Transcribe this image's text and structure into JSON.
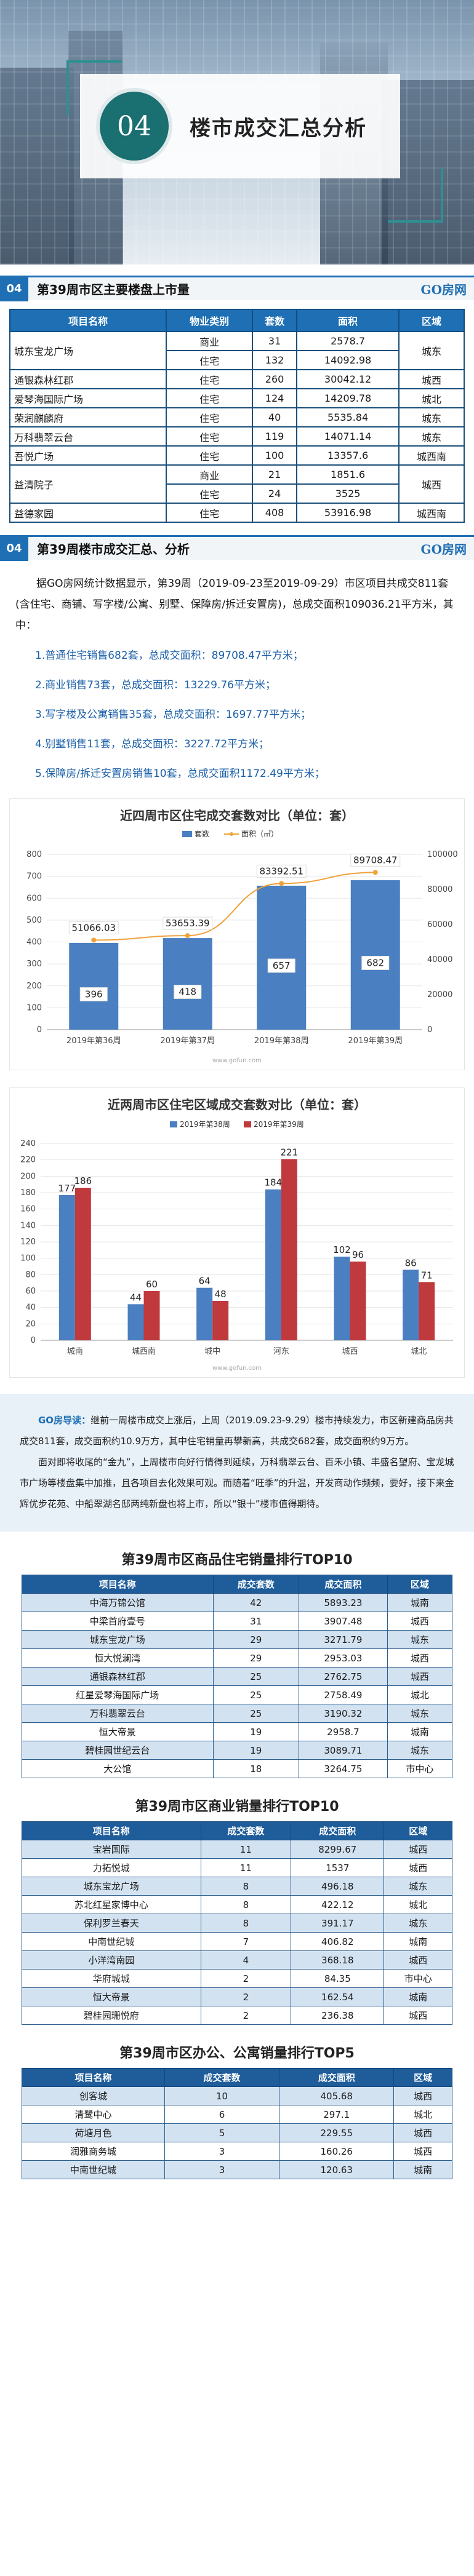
{
  "hero": {
    "badge": "04",
    "title": "楼市成交汇总分析"
  },
  "section1": {
    "num": "04",
    "title": "第39周市区主要楼盘上市量",
    "brand": "GO房网"
  },
  "supply_table": {
    "headers": [
      "项目名称",
      "物业类别",
      "套数",
      "面积",
      "区域"
    ],
    "rows": [
      {
        "name": "城东宝龙广场",
        "type": "商业",
        "units": "31",
        "area": "2578.7",
        "region": "城东",
        "span": 2,
        "rspan": 2
      },
      {
        "name": "",
        "type": "住宅",
        "units": "132",
        "area": "14092.98",
        "region": "",
        "cont": true
      },
      {
        "name": "通银森林红郡",
        "type": "住宅",
        "units": "260",
        "area": "30042.12",
        "region": "城西",
        "span": 1,
        "rspan": 1
      },
      {
        "name": "爱琴海国际广场",
        "type": "住宅",
        "units": "124",
        "area": "14209.78",
        "region": "城北",
        "span": 1,
        "rspan": 1
      },
      {
        "name": "荣润麒麟府",
        "type": "住宅",
        "units": "40",
        "area": "5535.84",
        "region": "城东",
        "span": 1,
        "rspan": 1
      },
      {
        "name": "万科翡翠云台",
        "type": "住宅",
        "units": "119",
        "area": "14071.14",
        "region": "城东",
        "span": 1,
        "rspan": 1
      },
      {
        "name": "吾悦广场",
        "type": "住宅",
        "units": "100",
        "area": "13357.6",
        "region": "城西南",
        "span": 1,
        "rspan": 1
      },
      {
        "name": "益清院子",
        "type": "商业",
        "units": "21",
        "area": "1851.6",
        "region": "城西",
        "span": 2,
        "rspan": 2
      },
      {
        "name": "",
        "type": "住宅",
        "units": "24",
        "area": "3525",
        "region": "",
        "cont": true
      },
      {
        "name": "益德家园",
        "type": "住宅",
        "units": "408",
        "area": "53916.98",
        "region": "城西南",
        "span": 1,
        "rspan": 1
      }
    ]
  },
  "section2": {
    "num": "04",
    "title": "第39周楼市成交汇总、分析",
    "brand": "GO房网"
  },
  "summary": "据GO房网统计数据显示，第39周（2019-09-23至2019-09-29）市区项目共成交811套(含住宅、商铺、写字楼/公寓、别墅、保障房/拆迁安置房)，总成交面积109036.21平方米，其中：",
  "items": [
    "1.普通住宅销售682套，总成交面积：89708.47平方米；",
    "2.商业销售73套，总成交面积：13229.76平方米；",
    "3.写字楼及公寓销售35套，总成交面积：1697.77平方米；",
    "4.别墅销售11套，总成交面积：3227.72平方米；",
    "5.保障房/拆迁安置房销售10套，总成交面积1172.49平方米；"
  ],
  "chart_data": [
    {
      "type": "bar",
      "title": "近四周市区住宅成交套数对比（单位：套）",
      "categories": [
        "2019年第36周",
        "2019年第37周",
        "2019年第38周",
        "2019年第39周"
      ],
      "series": [
        {
          "name": "套数",
          "values": [
            396,
            418,
            657,
            682
          ],
          "color": "#4a7fc1"
        },
        {
          "name": "面积（㎡）",
          "values": [
            51066.03,
            53653.39,
            83392.51,
            89708.47
          ],
          "color": "#f0a23b",
          "type": "line"
        }
      ],
      "ylim_left": [
        0,
        800
      ],
      "yticks_left": [
        "0",
        "100",
        "200",
        "300",
        "400",
        "500",
        "600",
        "700",
        "800"
      ],
      "ylim_right": [
        0,
        100000
      ],
      "yticks_right": [
        "0",
        "20000",
        "40000",
        "60000",
        "80000",
        "100000"
      ],
      "labels_bar": [
        "396",
        "418",
        "657",
        "682"
      ],
      "labels_line": [
        "51066.03",
        "53653.39",
        "83392.51",
        "89708.47"
      ],
      "watermark": "www.gofun.com"
    },
    {
      "type": "bar",
      "title": "近两周市区住宅区域成交套数对比（单位：套）",
      "categories": [
        "城南",
        "城西南",
        "城中",
        "河东",
        "城西",
        "城北"
      ],
      "series": [
        {
          "name": "2019年第38周",
          "values": [
            177,
            44,
            64,
            184,
            102,
            86
          ],
          "color": "#4a7fc1"
        },
        {
          "name": "2019年第39周",
          "values": [
            186,
            60,
            48,
            221,
            96,
            71
          ],
          "color": "#c0393c"
        }
      ],
      "ylim": [
        0,
        240
      ],
      "yticks": [
        "0",
        "20",
        "40",
        "60",
        "80",
        "100",
        "120",
        "140",
        "160",
        "180",
        "200",
        "220",
        "240"
      ],
      "watermark": "www.gofun.com"
    }
  ],
  "gonews": {
    "lead": "GO房导读：",
    "p1": "继前一周楼市成交上涨后，上周（2019.09.23-9.29）楼市持续发力，市区新建商品房共成交811套，成交面积约10.9万方，其中住宅销量再攀新高，共成交682套，成交面积约9万方。",
    "p2": "面对即将收尾的“金九”，上周楼市向好行情得到延续，万科翡翠云台、百禾小镇、丰盛名望府、宝龙城市广场等楼盘集中加推，且各项目去化效果可观。而随着“旺季”的升温，开发商动作频频，要好，接下来金辉优步花苑、中船翠湖名邸两纯新盘也将上市，所以“银十”楼市值得期待。"
  },
  "rank1": {
    "title": "第39周市区商品住宅销量排行TOP10",
    "headers": [
      "项目名称",
      "成交套数",
      "成交面积",
      "区域"
    ],
    "rows": [
      [
        "中海万锦公馆",
        "42",
        "5893.23",
        "城南"
      ],
      [
        "中梁首府壹号",
        "31",
        "3907.48",
        "城西"
      ],
      [
        "城东宝龙广场",
        "29",
        "3271.79",
        "城东"
      ],
      [
        "恒大悦澜湾",
        "29",
        "2953.03",
        "城西"
      ],
      [
        "通银森林红郡",
        "25",
        "2762.75",
        "城西"
      ],
      [
        "红星爱琴海国际广场",
        "25",
        "2758.49",
        "城北"
      ],
      [
        "万科翡翠云台",
        "25",
        "3190.32",
        "城东"
      ],
      [
        "恒大帝景",
        "19",
        "2958.7",
        "城南"
      ],
      [
        "碧桂园世纪云台",
        "19",
        "3089.71",
        "城东"
      ],
      [
        "大公馆",
        "18",
        "3264.75",
        "市中心"
      ]
    ]
  },
  "rank2": {
    "title": "第39周市区商业销量排行TOP10",
    "headers": [
      "项目名称",
      "成交套数",
      "成交面积",
      "区域"
    ],
    "rows": [
      [
        "宝岩国际",
        "11",
        "8299.67",
        "城西"
      ],
      [
        "力拓悦城",
        "11",
        "1537",
        "城西"
      ],
      [
        "城东宝龙广场",
        "8",
        "496.18",
        "城东"
      ],
      [
        "苏北红星家博中心",
        "8",
        "422.12",
        "城北"
      ],
      [
        "保利罗兰春天",
        "8",
        "391.17",
        "城东"
      ],
      [
        "中南世纪城",
        "7",
        "406.82",
        "城南"
      ],
      [
        "小洋湾南园",
        "4",
        "368.18",
        "城西"
      ],
      [
        "华府城城",
        "2",
        "84.35",
        "市中心"
      ],
      [
        "恒大帝景",
        "2",
        "162.54",
        "城南"
      ],
      [
        "碧桂园珊悦府",
        "2",
        "236.38",
        "城西"
      ]
    ]
  },
  "rank3": {
    "title": "第39周市区办公、公寓销量排行TOP5",
    "headers": [
      "项目名称",
      "成交套数",
      "成交面积",
      "区域"
    ],
    "rows": [
      [
        "创客城",
        "10",
        "405.68",
        "城西"
      ],
      [
        "清鹭中心",
        "6",
        "297.1",
        "城北"
      ],
      [
        "荷塘月色",
        "5",
        "229.55",
        "城西"
      ],
      [
        "润雅商务城",
        "3",
        "160.26",
        "城西"
      ],
      [
        "中南世纪城",
        "3",
        "120.63",
        "城南"
      ]
    ]
  }
}
